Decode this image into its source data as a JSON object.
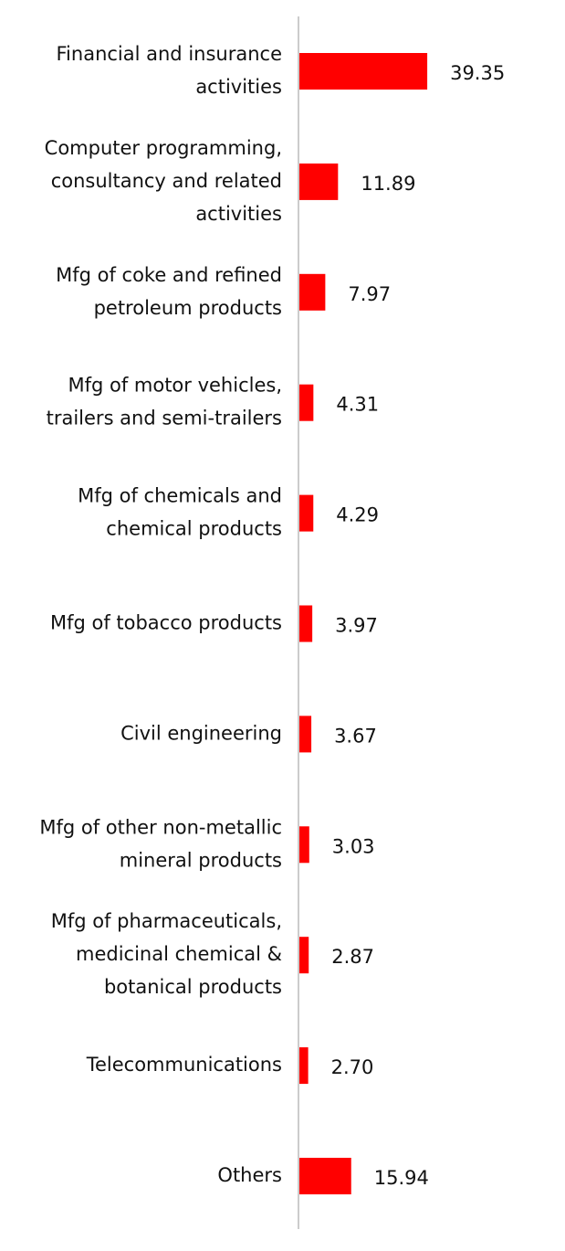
{
  "chart_data": {
    "type": "barh",
    "categories": [
      "Financial and insurance\nactivities",
      "Computer programming,\nconsultancy and related\nactivities",
      "Mfg of coke and refined\npetroleum products",
      "Mfg of motor vehicles,\ntrailers and semi-trailers",
      "Mfg of chemicals and\nchemical products",
      "Mfg of tobacco products",
      "Civil engineering",
      "Mfg of other non-metallic\nmineral products",
      "Mfg of pharmaceuticals,\nmedicinal chemical &\nbotanical products",
      "Telecommunications",
      "Others"
    ],
    "values": [
      39.35,
      11.89,
      7.97,
      4.31,
      4.29,
      3.97,
      3.67,
      3.03,
      2.87,
      2.7,
      15.94
    ],
    "value_labels": [
      "39.35",
      "11.89",
      "7.97",
      "4.31",
      "4.29",
      "3.97",
      "3.67",
      "3.03",
      "2.87",
      "2.70",
      "15.94"
    ],
    "color": "#ff0000"
  }
}
